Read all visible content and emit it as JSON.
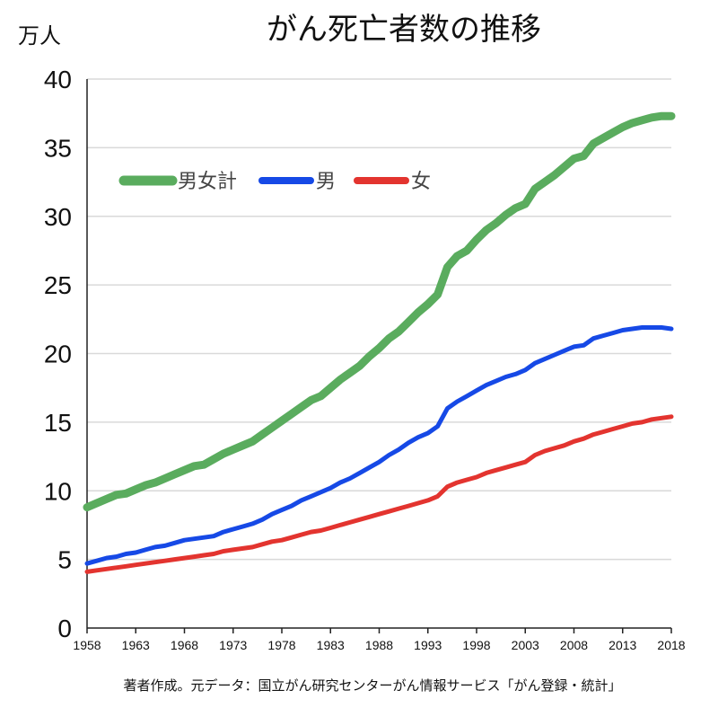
{
  "chart_data": {
    "type": "line",
    "title": "がん死亡者数の推移",
    "ylabel": "万人",
    "xlabel": "",
    "source": "著者作成。元データ：国立がん研究センターがん情報サービス「がん登録・統計」",
    "ylim": [
      0,
      40
    ],
    "xlim": [
      1958,
      2018
    ],
    "yticks": [
      0,
      5,
      10,
      15,
      20,
      25,
      30,
      35,
      40
    ],
    "ytick_labels": [
      "0",
      "5",
      "10",
      "15",
      "20",
      "25",
      "30",
      "35",
      "40"
    ],
    "xticks": [
      1958,
      1963,
      1968,
      1973,
      1978,
      1983,
      1988,
      1993,
      1998,
      2003,
      2008,
      2013,
      2018
    ],
    "xtick_labels": [
      "1958",
      "1963",
      "1968",
      "1973",
      "1978",
      "1983",
      "1988",
      "1993",
      "1998",
      "2003",
      "2008",
      "2013",
      "2018"
    ],
    "grid": true,
    "legend_position": "top-left",
    "x": [
      1958,
      1959,
      1960,
      1961,
      1962,
      1963,
      1964,
      1965,
      1966,
      1967,
      1968,
      1969,
      1970,
      1971,
      1972,
      1973,
      1974,
      1975,
      1976,
      1977,
      1978,
      1979,
      1980,
      1981,
      1982,
      1983,
      1984,
      1985,
      1986,
      1987,
      1988,
      1989,
      1990,
      1991,
      1992,
      1993,
      1994,
      1995,
      1996,
      1997,
      1998,
      1999,
      2000,
      2001,
      2002,
      2003,
      2004,
      2005,
      2006,
      2007,
      2008,
      2009,
      2010,
      2011,
      2012,
      2013,
      2014,
      2015,
      2016,
      2017,
      2018
    ],
    "series": [
      {
        "name": "男女計",
        "color": "#5aac5e",
        "values": [
          8.8,
          9.1,
          9.4,
          9.7,
          9.8,
          10.1,
          10.4,
          10.6,
          10.9,
          11.2,
          11.5,
          11.8,
          11.9,
          12.3,
          12.7,
          13.0,
          13.3,
          13.6,
          14.1,
          14.6,
          15.1,
          15.6,
          16.1,
          16.6,
          16.9,
          17.5,
          18.1,
          18.6,
          19.1,
          19.8,
          20.4,
          21.1,
          21.6,
          22.3,
          23.0,
          23.6,
          24.3,
          26.3,
          27.1,
          27.5,
          28.3,
          29.0,
          29.5,
          30.1,
          30.6,
          30.9,
          32.0,
          32.5,
          33.0,
          33.6,
          34.2,
          34.4,
          35.3,
          35.7,
          36.1,
          36.5,
          36.8,
          37.0,
          37.2,
          37.3,
          37.3
        ]
      },
      {
        "name": "男",
        "color": "#1649e6",
        "values": [
          4.7,
          4.9,
          5.1,
          5.2,
          5.4,
          5.5,
          5.7,
          5.9,
          6.0,
          6.2,
          6.4,
          6.5,
          6.6,
          6.7,
          7.0,
          7.2,
          7.4,
          7.6,
          7.9,
          8.3,
          8.6,
          8.9,
          9.3,
          9.6,
          9.9,
          10.2,
          10.6,
          10.9,
          11.3,
          11.7,
          12.1,
          12.6,
          13.0,
          13.5,
          13.9,
          14.2,
          14.7,
          16.0,
          16.5,
          16.9,
          17.3,
          17.7,
          18.0,
          18.3,
          18.5,
          18.8,
          19.3,
          19.6,
          19.9,
          20.2,
          20.5,
          20.6,
          21.1,
          21.3,
          21.5,
          21.7,
          21.8,
          21.9,
          21.9,
          21.9,
          21.8
        ]
      },
      {
        "name": "女",
        "color": "#e3342f",
        "values": [
          4.1,
          4.2,
          4.3,
          4.4,
          4.5,
          4.6,
          4.7,
          4.8,
          4.9,
          5.0,
          5.1,
          5.2,
          5.3,
          5.4,
          5.6,
          5.7,
          5.8,
          5.9,
          6.1,
          6.3,
          6.4,
          6.6,
          6.8,
          7.0,
          7.1,
          7.3,
          7.5,
          7.7,
          7.9,
          8.1,
          8.3,
          8.5,
          8.7,
          8.9,
          9.1,
          9.3,
          9.6,
          10.3,
          10.6,
          10.8,
          11.0,
          11.3,
          11.5,
          11.7,
          11.9,
          12.1,
          12.6,
          12.9,
          13.1,
          13.3,
          13.6,
          13.8,
          14.1,
          14.3,
          14.5,
          14.7,
          14.9,
          15.0,
          15.2,
          15.3,
          15.4
        ]
      }
    ]
  }
}
